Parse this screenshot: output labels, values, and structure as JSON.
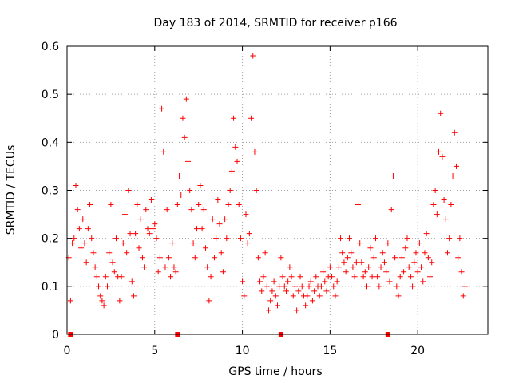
{
  "chart_data": {
    "type": "scatter",
    "title": "Day 183 of 2014, SRMTID for receiver p166",
    "xlabel": "GPS time / hours",
    "ylabel": "SRMTID / TECUs",
    "xlim": [
      0,
      24
    ],
    "ylim": [
      0,
      0.6
    ],
    "x_ticks": [
      0,
      5,
      10,
      15,
      20
    ],
    "y_ticks": [
      0,
      0.1,
      0.2,
      0.3,
      0.4,
      0.5,
      0.6
    ],
    "x_tick_labels": [
      "0",
      "5",
      "10",
      "15",
      "20"
    ],
    "y_tick_labels": [
      "0",
      "0.1",
      "0.2",
      "0.3",
      "0.4",
      "0.5",
      "0.6"
    ],
    "grid": true,
    "marker": "+",
    "color": "#ff0000",
    "data_gap_markers_x": [
      0.2,
      6.3,
      12.2,
      18.3
    ],
    "series": [
      {
        "name": "SRMTID",
        "points": [
          [
            0.1,
            0.16
          ],
          [
            0.2,
            0.07
          ],
          [
            0.3,
            0.19
          ],
          [
            0.4,
            0.2
          ],
          [
            0.5,
            0.31
          ],
          [
            0.6,
            0.26
          ],
          [
            0.7,
            0.22
          ],
          [
            0.8,
            0.18
          ],
          [
            0.9,
            0.24
          ],
          [
            1.0,
            0.19
          ],
          [
            1.1,
            0.15
          ],
          [
            1.2,
            0.22
          ],
          [
            1.3,
            0.27
          ],
          [
            1.4,
            0.2
          ],
          [
            1.5,
            0.17
          ],
          [
            1.6,
            0.14
          ],
          [
            1.7,
            0.12
          ],
          [
            1.8,
            0.1
          ],
          [
            1.9,
            0.08
          ],
          [
            2.0,
            0.07
          ],
          [
            2.1,
            0.06
          ],
          [
            2.2,
            0.12
          ],
          [
            2.3,
            0.1
          ],
          [
            2.4,
            0.17
          ],
          [
            2.5,
            0.27
          ],
          [
            2.6,
            0.15
          ],
          [
            2.7,
            0.13
          ],
          [
            2.8,
            0.2
          ],
          [
            2.9,
            0.12
          ],
          [
            3.0,
            0.07
          ],
          [
            3.1,
            0.12
          ],
          [
            3.2,
            0.19
          ],
          [
            3.3,
            0.25
          ],
          [
            3.4,
            0.17
          ],
          [
            3.5,
            0.3
          ],
          [
            3.6,
            0.21
          ],
          [
            3.7,
            0.11
          ],
          [
            3.8,
            0.08
          ],
          [
            3.9,
            0.21
          ],
          [
            4.0,
            0.27
          ],
          [
            4.1,
            0.18
          ],
          [
            4.2,
            0.24
          ],
          [
            4.3,
            0.16
          ],
          [
            4.4,
            0.14
          ],
          [
            4.5,
            0.26
          ],
          [
            4.6,
            0.22
          ],
          [
            4.7,
            0.21
          ],
          [
            4.8,
            0.28
          ],
          [
            4.9,
            0.22
          ],
          [
            5.0,
            0.23
          ],
          [
            5.1,
            0.2
          ],
          [
            5.2,
            0.13
          ],
          [
            5.3,
            0.16
          ],
          [
            5.4,
            0.47
          ],
          [
            5.5,
            0.38
          ],
          [
            5.6,
            0.14
          ],
          [
            5.7,
            0.26
          ],
          [
            5.8,
            0.16
          ],
          [
            5.9,
            0.12
          ],
          [
            6.0,
            0.19
          ],
          [
            6.1,
            0.14
          ],
          [
            6.2,
            0.13
          ],
          [
            6.3,
            0.27
          ],
          [
            6.4,
            0.33
          ],
          [
            6.5,
            0.29
          ],
          [
            6.6,
            0.45
          ],
          [
            6.7,
            0.41
          ],
          [
            6.8,
            0.49
          ],
          [
            6.9,
            0.36
          ],
          [
            7.0,
            0.3
          ],
          [
            7.1,
            0.26
          ],
          [
            7.2,
            0.19
          ],
          [
            7.3,
            0.16
          ],
          [
            7.4,
            0.22
          ],
          [
            7.5,
            0.27
          ],
          [
            7.6,
            0.31
          ],
          [
            7.7,
            0.22
          ],
          [
            7.8,
            0.26
          ],
          [
            7.9,
            0.18
          ],
          [
            8.0,
            0.14
          ],
          [
            8.1,
            0.07
          ],
          [
            8.2,
            0.12
          ],
          [
            8.3,
            0.24
          ],
          [
            8.4,
            0.16
          ],
          [
            8.5,
            0.2
          ],
          [
            8.6,
            0.28
          ],
          [
            8.7,
            0.23
          ],
          [
            8.8,
            0.17
          ],
          [
            8.9,
            0.13
          ],
          [
            9.0,
            0.24
          ],
          [
            9.1,
            0.2
          ],
          [
            9.2,
            0.27
          ],
          [
            9.3,
            0.3
          ],
          [
            9.4,
            0.34
          ],
          [
            9.5,
            0.45
          ],
          [
            9.6,
            0.39
          ],
          [
            9.7,
            0.36
          ],
          [
            9.8,
            0.27
          ],
          [
            9.9,
            0.2
          ],
          [
            10.0,
            0.11
          ],
          [
            10.1,
            0.08
          ],
          [
            10.2,
            0.25
          ],
          [
            10.3,
            0.19
          ],
          [
            10.4,
            0.21
          ],
          [
            10.5,
            0.45
          ],
          [
            10.6,
            0.58
          ],
          [
            10.7,
            0.38
          ],
          [
            10.8,
            0.3
          ],
          [
            10.9,
            0.16
          ],
          [
            11.0,
            0.11
          ],
          [
            11.1,
            0.09
          ],
          [
            11.2,
            0.12
          ],
          [
            11.3,
            0.17
          ],
          [
            11.4,
            0.1
          ],
          [
            11.5,
            0.05
          ],
          [
            11.6,
            0.07
          ],
          [
            11.7,
            0.09
          ],
          [
            11.8,
            0.11
          ],
          [
            11.9,
            0.08
          ],
          [
            12.0,
            0.06
          ],
          [
            12.1,
            0.1
          ],
          [
            12.2,
            0.16
          ],
          [
            12.3,
            0.12
          ],
          [
            12.4,
            0.1
          ],
          [
            12.5,
            0.09
          ],
          [
            12.6,
            0.11
          ],
          [
            12.7,
            0.14
          ],
          [
            12.8,
            0.12
          ],
          [
            12.9,
            0.08
          ],
          [
            13.0,
            0.1
          ],
          [
            13.1,
            0.05
          ],
          [
            13.2,
            0.09
          ],
          [
            13.3,
            0.12
          ],
          [
            13.4,
            0.1
          ],
          [
            13.5,
            0.08
          ],
          [
            13.6,
            0.06
          ],
          [
            13.7,
            0.08
          ],
          [
            13.8,
            0.1
          ],
          [
            13.9,
            0.11
          ],
          [
            14.0,
            0.07
          ],
          [
            14.1,
            0.09
          ],
          [
            14.2,
            0.12
          ],
          [
            14.3,
            0.1
          ],
          [
            14.4,
            0.08
          ],
          [
            14.5,
            0.1
          ],
          [
            14.6,
            0.13
          ],
          [
            14.7,
            0.11
          ],
          [
            14.8,
            0.09
          ],
          [
            14.9,
            0.12
          ],
          [
            15.0,
            0.14
          ],
          [
            15.1,
            0.12
          ],
          [
            15.2,
            0.1
          ],
          [
            15.3,
            0.08
          ],
          [
            15.4,
            0.11
          ],
          [
            15.5,
            0.14
          ],
          [
            15.6,
            0.2
          ],
          [
            15.7,
            0.17
          ],
          [
            15.8,
            0.15
          ],
          [
            15.9,
            0.13
          ],
          [
            16.0,
            0.16
          ],
          [
            16.1,
            0.2
          ],
          [
            16.2,
            0.17
          ],
          [
            16.3,
            0.14
          ],
          [
            16.4,
            0.12
          ],
          [
            16.5,
            0.15
          ],
          [
            16.6,
            0.27
          ],
          [
            16.7,
            0.19
          ],
          [
            16.8,
            0.15
          ],
          [
            16.9,
            0.12
          ],
          [
            17.0,
            0.13
          ],
          [
            17.1,
            0.1
          ],
          [
            17.2,
            0.14
          ],
          [
            17.3,
            0.18
          ],
          [
            17.4,
            0.12
          ],
          [
            17.5,
            0.16
          ],
          [
            17.6,
            0.2
          ],
          [
            17.7,
            0.12
          ],
          [
            17.8,
            0.1
          ],
          [
            17.9,
            0.14
          ],
          [
            18.0,
            0.17
          ],
          [
            18.1,
            0.15
          ],
          [
            18.2,
            0.13
          ],
          [
            18.3,
            0.19
          ],
          [
            18.4,
            0.11
          ],
          [
            18.5,
            0.26
          ],
          [
            18.6,
            0.33
          ],
          [
            18.7,
            0.16
          ],
          [
            18.8,
            0.1
          ],
          [
            18.9,
            0.08
          ],
          [
            19.0,
            0.12
          ],
          [
            19.1,
            0.16
          ],
          [
            19.2,
            0.13
          ],
          [
            19.3,
            0.18
          ],
          [
            19.4,
            0.2
          ],
          [
            19.5,
            0.14
          ],
          [
            19.6,
            0.12
          ],
          [
            19.7,
            0.1
          ],
          [
            19.8,
            0.15
          ],
          [
            19.9,
            0.17
          ],
          [
            20.0,
            0.13
          ],
          [
            20.1,
            0.19
          ],
          [
            20.2,
            0.14
          ],
          [
            20.3,
            0.11
          ],
          [
            20.4,
            0.17
          ],
          [
            20.5,
            0.21
          ],
          [
            20.6,
            0.16
          ],
          [
            20.7,
            0.12
          ],
          [
            20.8,
            0.15
          ],
          [
            20.9,
            0.27
          ],
          [
            21.0,
            0.3
          ],
          [
            21.1,
            0.25
          ],
          [
            21.2,
            0.38
          ],
          [
            21.3,
            0.46
          ],
          [
            21.4,
            0.37
          ],
          [
            21.5,
            0.28
          ],
          [
            21.6,
            0.24
          ],
          [
            21.7,
            0.17
          ],
          [
            21.8,
            0.2
          ],
          [
            21.9,
            0.27
          ],
          [
            22.0,
            0.33
          ],
          [
            22.1,
            0.42
          ],
          [
            22.2,
            0.35
          ],
          [
            22.3,
            0.16
          ],
          [
            22.4,
            0.2
          ],
          [
            22.5,
            0.13
          ],
          [
            22.6,
            0.08
          ],
          [
            22.7,
            0.1
          ]
        ]
      }
    ]
  }
}
